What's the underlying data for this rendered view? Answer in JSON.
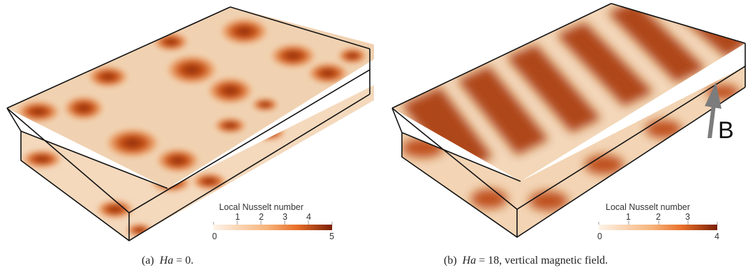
{
  "panels": [
    {
      "caption_prefix": "(a)",
      "caption_var": "Ha",
      "caption_rest": " = 0.",
      "legend": {
        "title": "Local Nusselt number",
        "min_label": "0",
        "max_label": "5",
        "ticks": [
          "1",
          "2",
          "3",
          "4"
        ]
      }
    },
    {
      "caption_prefix": "(b)",
      "caption_var": "Ha",
      "caption_rest": " = 18, vertical magnetic field.",
      "legend": {
        "title": "Local Nusselt number",
        "min_label": "0",
        "max_label": "4",
        "ticks": [
          "1",
          "2",
          "3"
        ]
      },
      "field_label": "B"
    }
  ],
  "colormap": {
    "low": "#fdeede",
    "mid": "#ee7424",
    "high": "#7a1f05"
  }
}
